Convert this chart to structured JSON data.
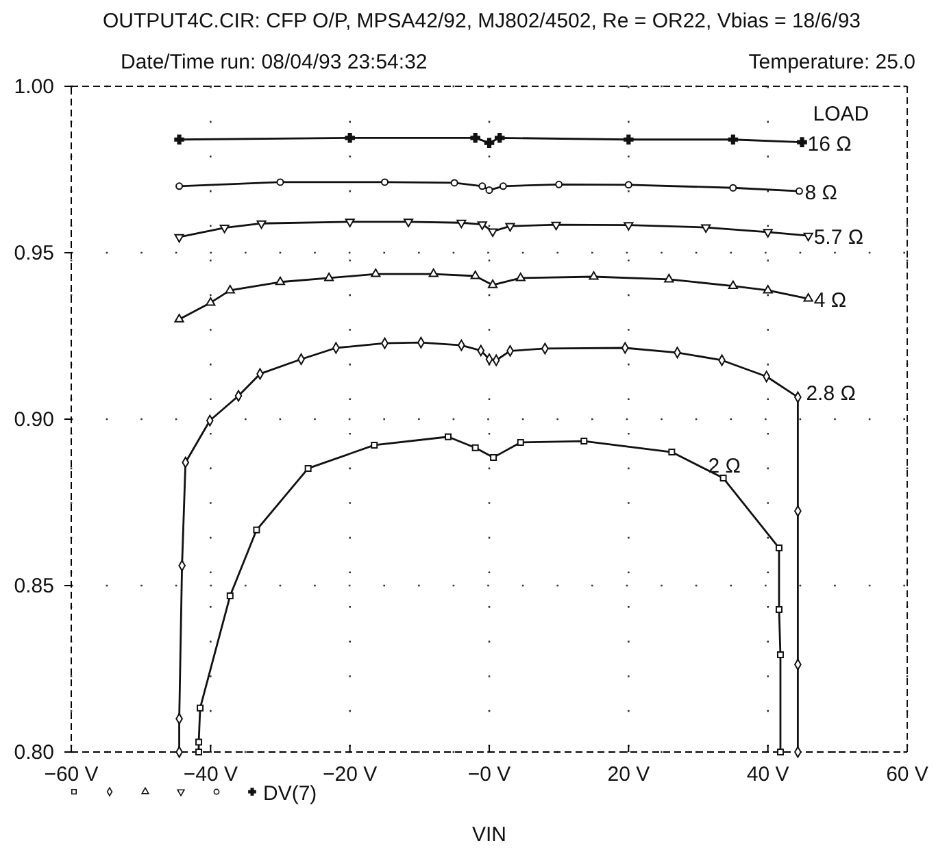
{
  "chart_data": {
    "type": "line",
    "title": "OUTPUT4C.CIR: CFP O/P, MPSA42/92, MJ802/4502, Re = OR22, Vbias = 18/6/93",
    "subtitle": "Date/Time   run: 08/04/93  23:54:32",
    "annotations": [
      "Temperature: 25.0",
      "DV(7)"
    ],
    "xlabel": "VIN",
    "legend_title": "LOAD",
    "xlim": [
      -60,
      60
    ],
    "ylim": [
      0.8,
      1.0
    ],
    "xticks": [
      {
        "value": -60,
        "label": "−60 V"
      },
      {
        "value": -40,
        "label": "−40 V"
      },
      {
        "value": -20,
        "label": "−20 V"
      },
      {
        "value": 0,
        "label": "−0 V"
      },
      {
        "value": 20,
        "label": "20 V"
      },
      {
        "value": 40,
        "label": "40 V"
      },
      {
        "value": 60,
        "label": "60 V"
      }
    ],
    "yticks": [
      {
        "value": 0.8,
        "label": "0.80"
      },
      {
        "value": 0.85,
        "label": "0.85"
      },
      {
        "value": 0.9,
        "label": "0.90"
      },
      {
        "value": 0.95,
        "label": "0.95"
      },
      {
        "value": 1.0,
        "label": "1.00"
      }
    ],
    "grid": true,
    "line_style": "solid",
    "series": [
      {
        "name": "16 Ω",
        "color": "#111111",
        "marker": "cross",
        "x": [
          -44.5,
          -20,
          -2,
          0,
          1.5,
          20,
          35,
          44.9
        ],
        "values": [
          0.984,
          0.9845,
          0.9845,
          0.983,
          0.9845,
          0.984,
          0.984,
          0.9832
        ]
      },
      {
        "name": "8 Ω",
        "color": "#111111",
        "marker": "circle",
        "x": [
          -44.5,
          -30,
          -15,
          -5,
          -1,
          0,
          2,
          10,
          20,
          35,
          44.5
        ],
        "values": [
          0.97,
          0.9712,
          0.9712,
          0.971,
          0.97,
          0.9688,
          0.97,
          0.9705,
          0.9704,
          0.9695,
          0.9685
        ]
      },
      {
        "name": "5.7 Ω",
        "color": "#111111",
        "marker": "triangle-down",
        "x": [
          -44.5,
          -38,
          -32.7,
          -20,
          -11.6,
          -4,
          -1,
          0.5,
          3,
          9.6,
          20,
          31.1,
          40,
          45.8
        ],
        "values": [
          0.9547,
          0.9575,
          0.9588,
          0.9593,
          0.9593,
          0.959,
          0.9585,
          0.9564,
          0.958,
          0.9584,
          0.9583,
          0.9576,
          0.9562,
          0.9551
        ]
      },
      {
        "name": "4 Ω",
        "color": "#111111",
        "marker": "triangle",
        "x": [
          -44.5,
          -40,
          -37.2,
          -30,
          -23,
          -16.3,
          -8,
          -2,
          0.5,
          4.5,
          15,
          25.8,
          35,
          40,
          45.8
        ],
        "values": [
          0.93,
          0.935,
          0.9387,
          0.9412,
          0.9424,
          0.9436,
          0.9436,
          0.943,
          0.9403,
          0.9424,
          0.9428,
          0.942,
          0.94,
          0.9387,
          0.9362
        ]
      },
      {
        "name": "2.8 Ω",
        "color": "#111111",
        "marker": "diamond",
        "x": [
          -44.5,
          -44.5,
          -44.1,
          -43.6,
          -40.1,
          -36,
          -32.9,
          -27,
          -22,
          -15,
          -9.8,
          -4,
          -1.2,
          0,
          1,
          3,
          8,
          19.5,
          27,
          33.4,
          39.8,
          44.3,
          44.3,
          44.3,
          44.3
        ],
        "values": [
          0.8,
          0.81,
          0.856,
          0.887,
          0.8996,
          0.907,
          0.9136,
          0.918,
          0.9214,
          0.9228,
          0.923,
          0.9222,
          0.9206,
          0.918,
          0.9177,
          0.9205,
          0.9212,
          0.9214,
          0.92,
          0.9177,
          0.9128,
          0.9066,
          0.8724,
          0.8263,
          0.8
        ]
      },
      {
        "name": "2 Ω",
        "color": "#111111",
        "marker": "square",
        "x": [
          -41.7,
          -41.7,
          -41.5,
          -37.2,
          -33.4,
          -26,
          -16.5,
          -5.9,
          -2,
          0.6,
          4.5,
          13.6,
          26.2,
          33.6,
          41.6,
          41.6,
          41.8,
          41.8
        ],
        "values": [
          0.8,
          0.803,
          0.8132,
          0.8469,
          0.8667,
          0.8852,
          0.8922,
          0.8947,
          0.8914,
          0.8885,
          0.893,
          0.8934,
          0.8901,
          0.8823,
          0.8613,
          0.8428,
          0.8292,
          0.8
        ]
      }
    ]
  }
}
